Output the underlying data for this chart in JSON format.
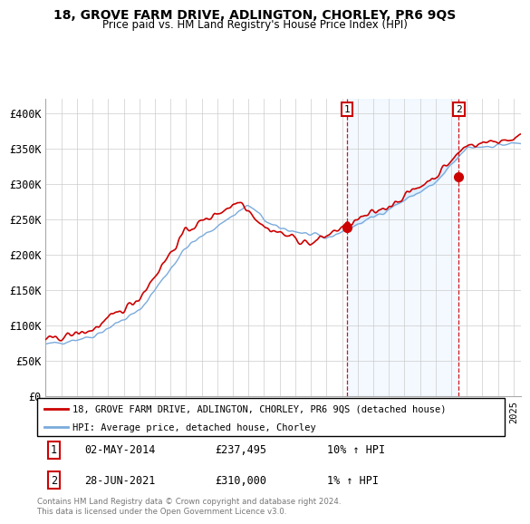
{
  "title": "18, GROVE FARM DRIVE, ADLINGTON, CHORLEY, PR6 9QS",
  "subtitle": "Price paid vs. HM Land Registry's House Price Index (HPI)",
  "legend_line1": "18, GROVE FARM DRIVE, ADLINGTON, CHORLEY, PR6 9QS (detached house)",
  "legend_line2": "HPI: Average price, detached house, Chorley",
  "annotation1_date": "02-MAY-2014",
  "annotation1_price": "£237,495",
  "annotation1_hpi": "10% ↑ HPI",
  "annotation2_date": "28-JUN-2021",
  "annotation2_price": "£310,000",
  "annotation2_hpi": "1% ↑ HPI",
  "footer": "Contains HM Land Registry data © Crown copyright and database right 2024.\nThis data is licensed under the Open Government Licence v3.0.",
  "price_line_color": "#cc0000",
  "hpi_line_color": "#7aabdc",
  "hpi_fill_color": "#ddeeff",
  "annotation_color": "#cc0000",
  "ylim": [
    0,
    420000
  ],
  "yticks": [
    0,
    50000,
    100000,
    150000,
    200000,
    250000,
    300000,
    350000,
    400000
  ],
  "ytick_labels": [
    "£0",
    "£50K",
    "£100K",
    "£150K",
    "£200K",
    "£250K",
    "£300K",
    "£350K",
    "£400K"
  ],
  "sale1_x": 2014.33,
  "sale1_y": 237495,
  "sale2_x": 2021.49,
  "sale2_y": 310000,
  "xmin": 1995,
  "xmax": 2025.5
}
